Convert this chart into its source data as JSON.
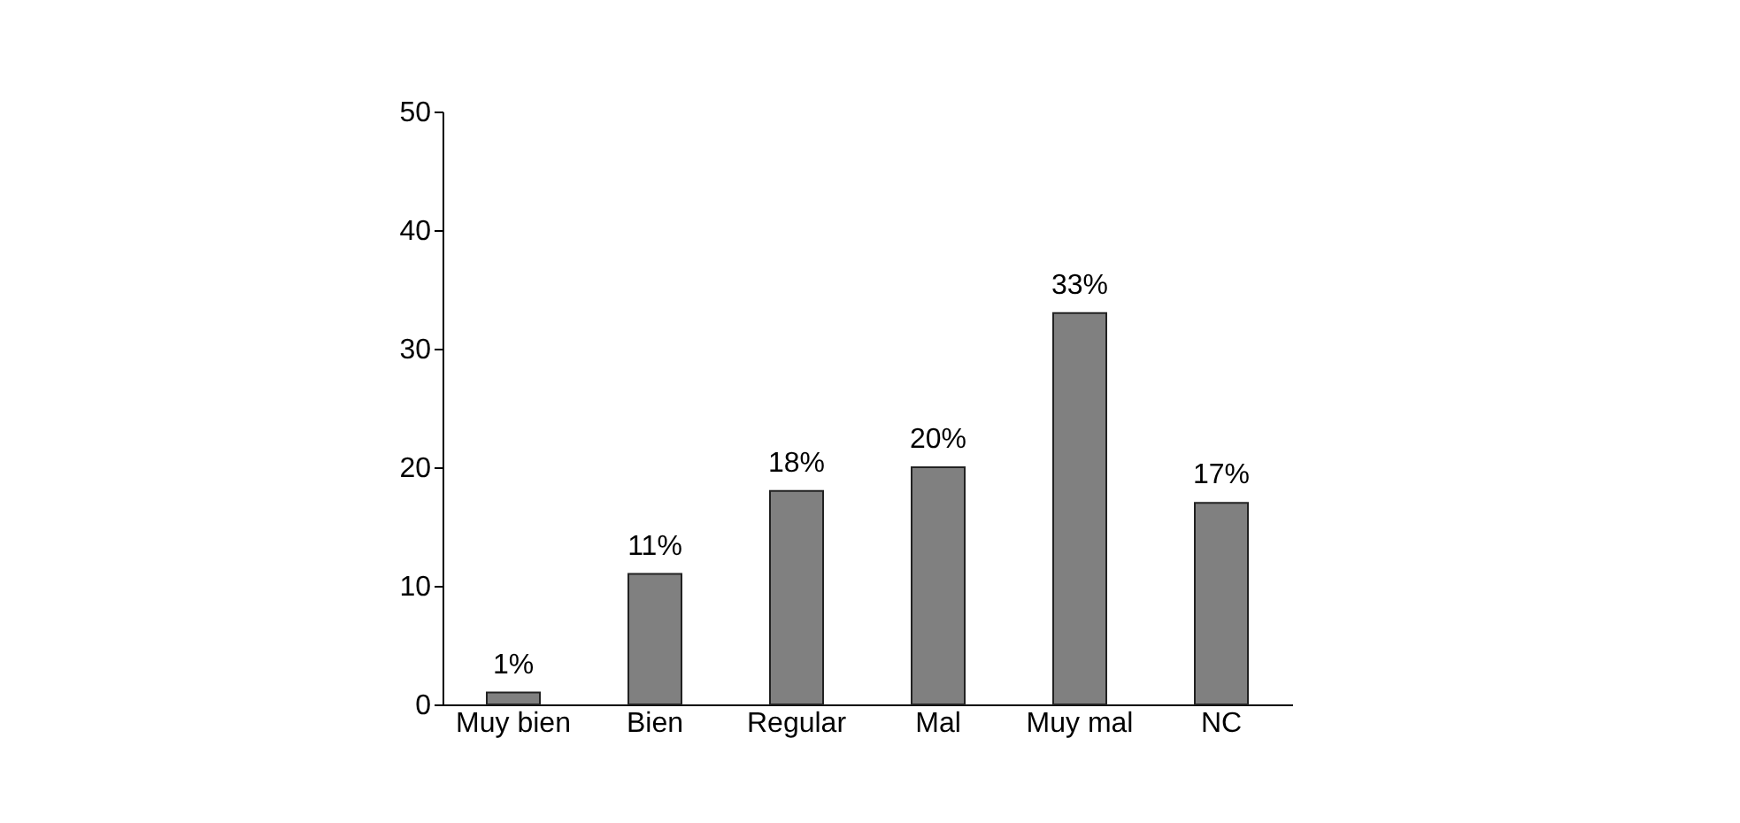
{
  "chart_data": {
    "type": "bar",
    "categories": [
      "Muy bien",
      "Bien",
      "Regular",
      "Mal",
      "Muy mal",
      "NC"
    ],
    "values": [
      1,
      11,
      18,
      20,
      33,
      17
    ],
    "value_labels": [
      "1%",
      "11%",
      "18%",
      "20%",
      "33%",
      "17%"
    ],
    "color": "#808080",
    "ylim": [
      0,
      50
    ],
    "yticks": [
      0,
      10,
      20,
      30,
      40,
      50
    ],
    "grid": false
  }
}
